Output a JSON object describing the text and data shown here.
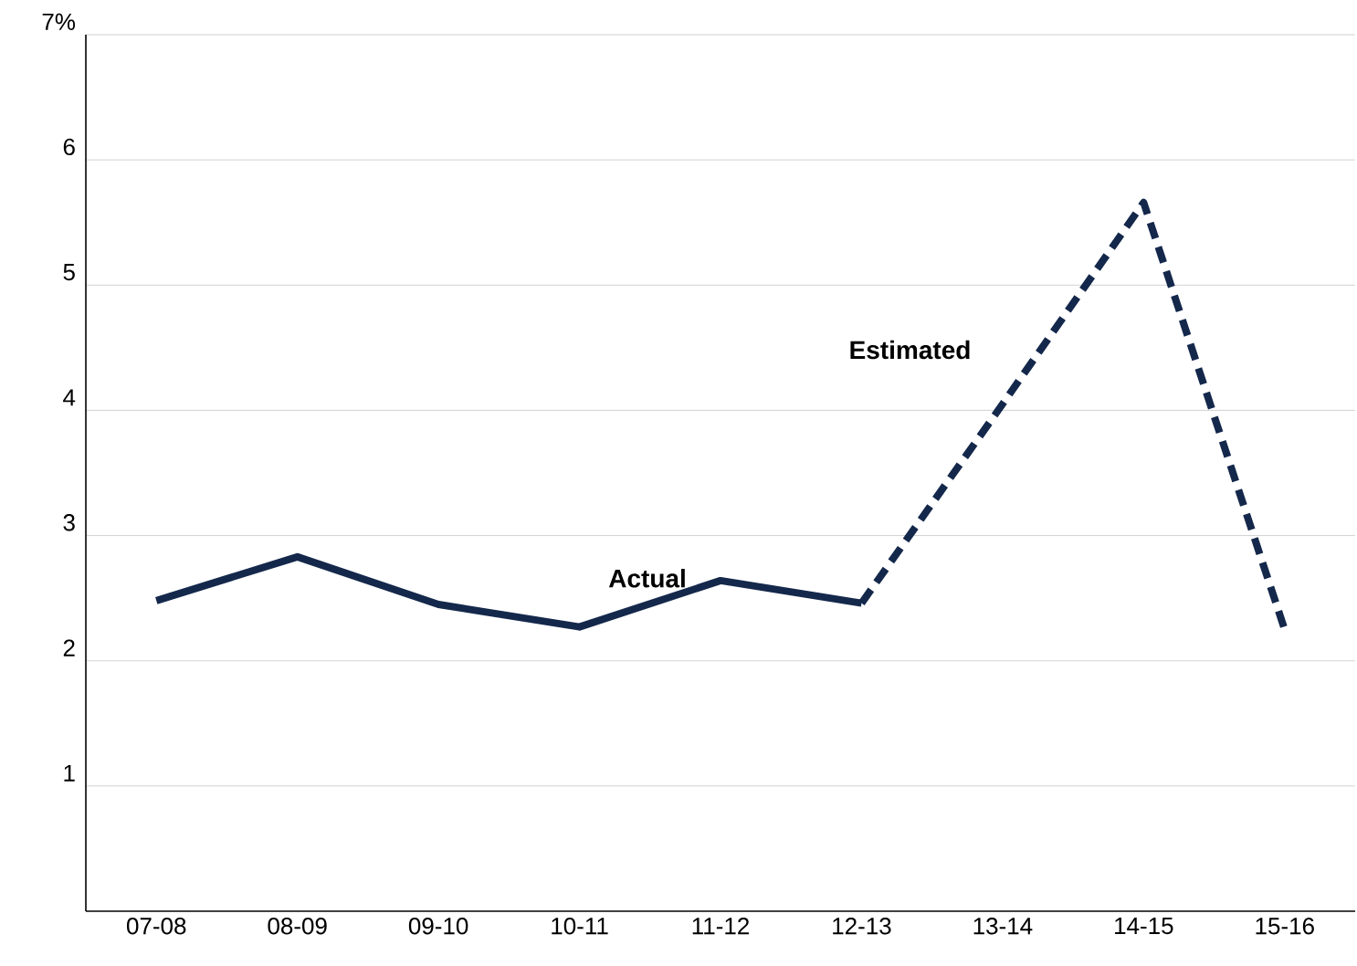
{
  "chart_data": {
    "type": "line",
    "categories": [
      "07-08",
      "08-09",
      "09-10",
      "10-11",
      "11-12",
      "12-13",
      "13-14",
      "14-15",
      "15-16"
    ],
    "series": [
      {
        "name": "Actual",
        "color": "#14284b",
        "line_style": "solid",
        "values": [
          2.48,
          2.83,
          2.45,
          2.27,
          2.64,
          2.46,
          null,
          null,
          null
        ]
      },
      {
        "name": "Estimated",
        "color": "#14284b",
        "line_style": "dashed",
        "values": [
          null,
          null,
          null,
          null,
          null,
          2.46,
          4.05,
          5.66,
          2.25
        ]
      }
    ],
    "ylim": [
      0,
      7
    ],
    "yticks": [
      1,
      2,
      3,
      4,
      5,
      6,
      {
        "value": 7,
        "label": "7%"
      }
    ],
    "grid": "y",
    "marker": "none",
    "legend": false
  }
}
